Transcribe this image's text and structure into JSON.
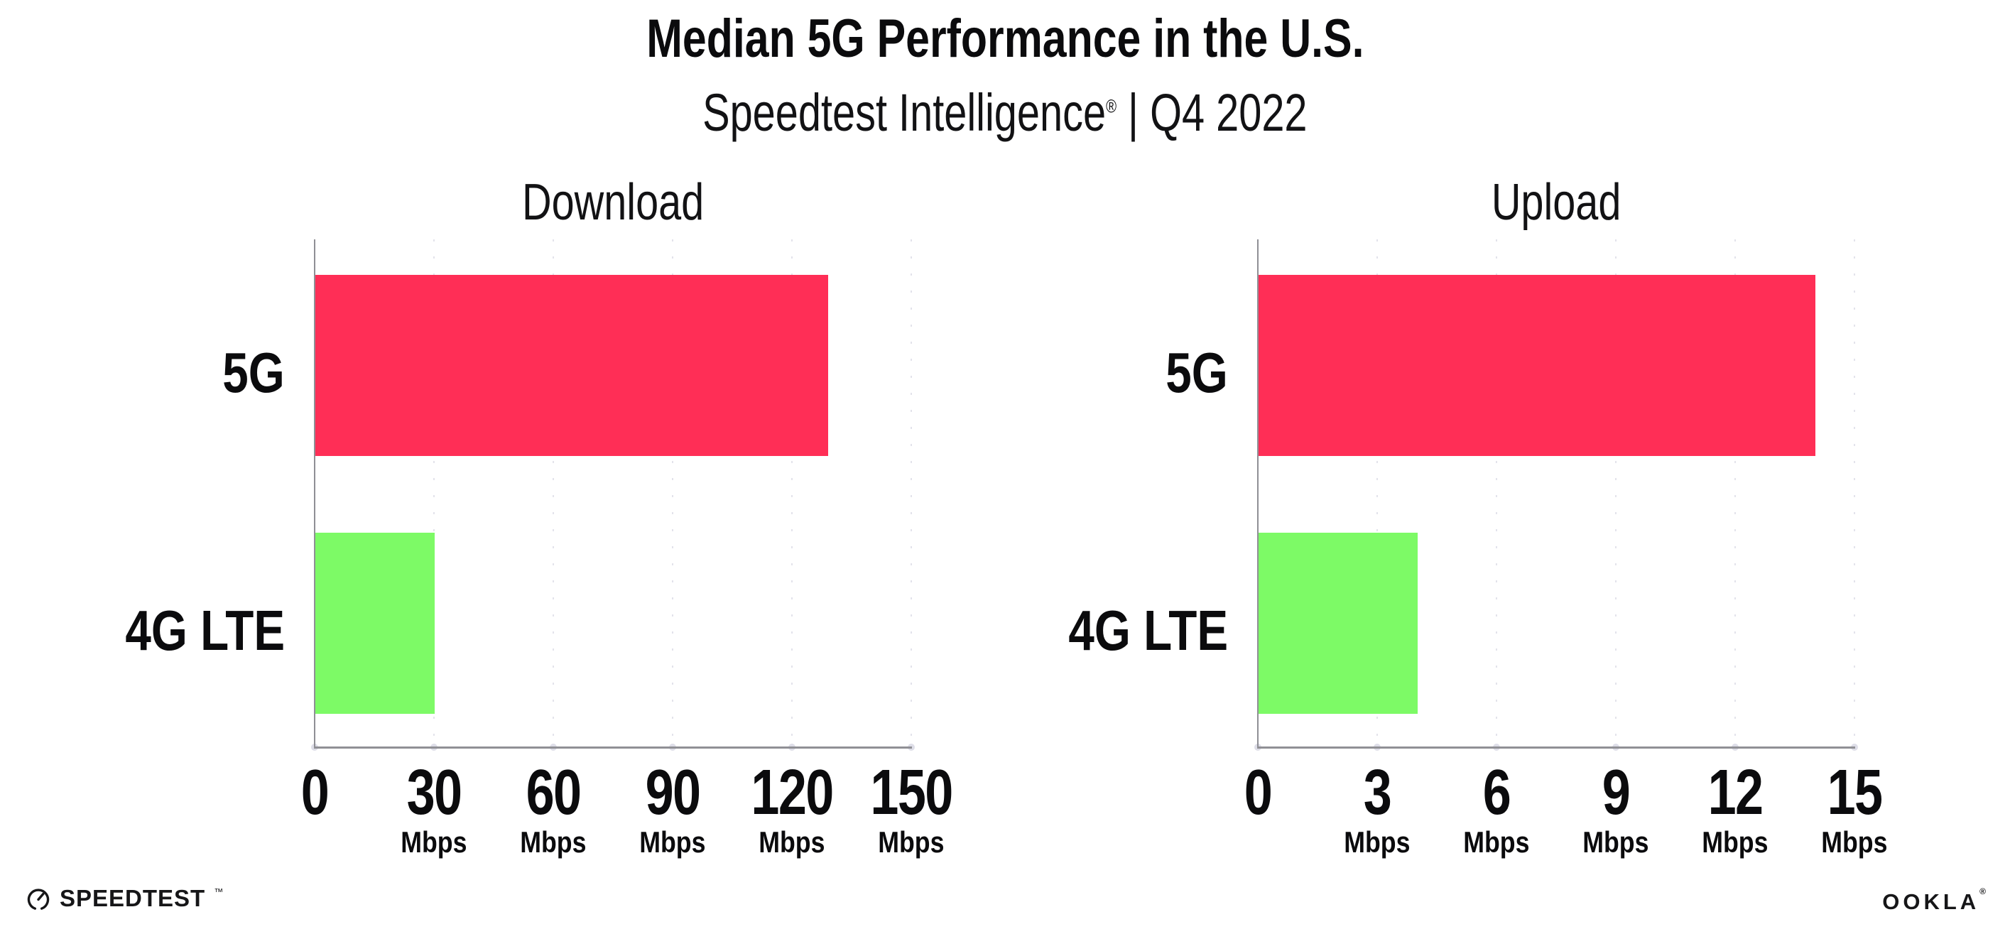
{
  "header": {
    "title": "Median 5G Performance in the U.S.",
    "subtitle_brand": "Speedtest Intelligence",
    "subtitle_reg": "®",
    "subtitle_sep": " | ",
    "subtitle_period": "Q4 2022"
  },
  "chart_data": [
    {
      "type": "bar",
      "orientation": "horizontal",
      "title": "Download",
      "categories": [
        "5G",
        "4G LTE"
      ],
      "values": [
        129,
        30
      ],
      "unit": "Mbps",
      "xlim": [
        0,
        150
      ],
      "xticks": [
        0,
        30,
        60,
        90,
        120,
        150
      ],
      "bar_colors": [
        "#FF2E56",
        "#7DFA66"
      ],
      "grid": "dotted-vertical",
      "legend": "none"
    },
    {
      "type": "bar",
      "orientation": "horizontal",
      "title": "Upload",
      "categories": [
        "5G",
        "4G LTE"
      ],
      "values": [
        14,
        4
      ],
      "unit": "Mbps",
      "xlim": [
        0,
        15
      ],
      "xticks": [
        0,
        3,
        6,
        9,
        12,
        15
      ],
      "bar_colors": [
        "#FF2E56",
        "#7DFA66"
      ],
      "grid": "dotted-vertical",
      "legend": "none"
    }
  ],
  "colors": {
    "bar_5g": "#FF2E56",
    "bar_4g_lte": "#7DFA66",
    "axis": "#8F8F95",
    "gridline": "#E3E3EB",
    "tick_dot": "#DEDEE8",
    "text": "#0B0B0D"
  },
  "footer": {
    "speedtest_label": "SPEEDTEST",
    "speedtest_tm": "™",
    "ookla_label": "OOKLA",
    "ookla_reg": "®"
  }
}
